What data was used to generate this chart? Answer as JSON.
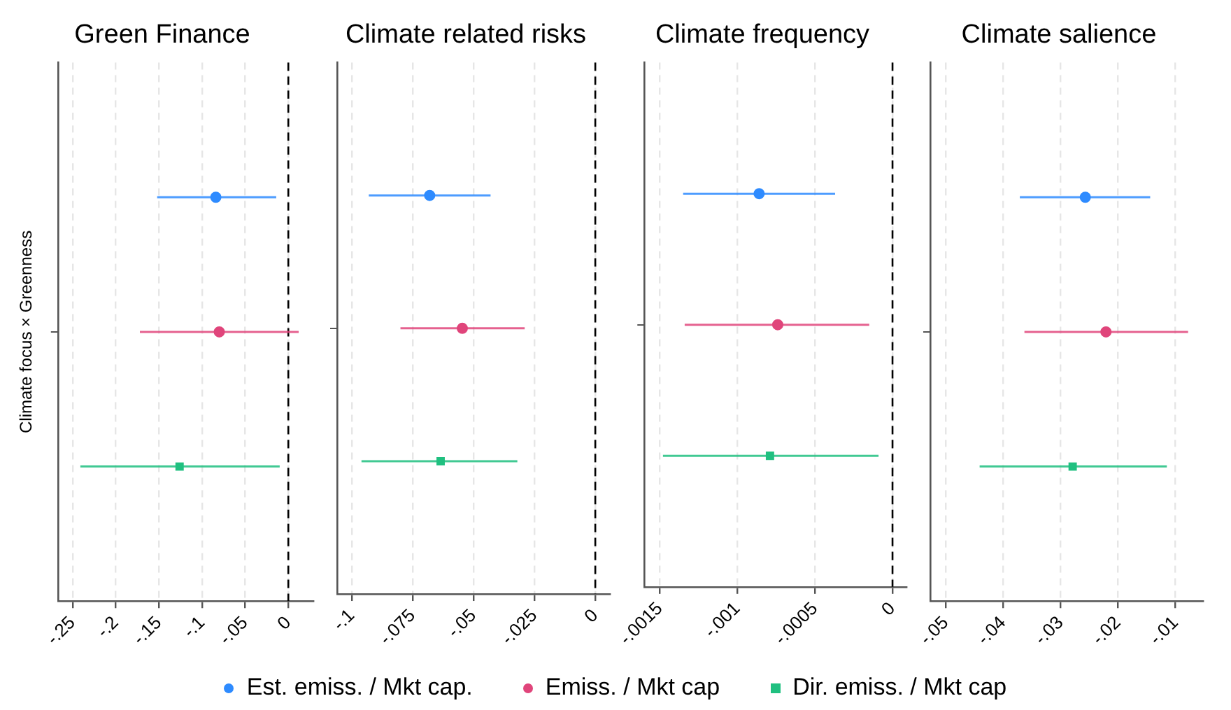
{
  "chart_data": [
    {
      "type": "scatter",
      "title": "Green Finance",
      "ylabel": "Climate focus × Greenness",
      "orientation": "horizontal",
      "categories": [
        null
      ],
      "grid": "x",
      "legend": "bottom",
      "xlim": [
        -0.267,
        0.029
      ],
      "xticks": [
        {
          "value": -0.25,
          "label": "-.25"
        },
        {
          "value": -0.2,
          "label": "-.2"
        },
        {
          "value": -0.15,
          "label": "-.15"
        },
        {
          "value": -0.1,
          "label": "-.1"
        },
        {
          "value": -0.05,
          "label": "-.05"
        },
        {
          "value": 0,
          "label": "0"
        }
      ],
      "ref_lines": [
        {
          "axis": "x",
          "value": 0,
          "color": "#000000",
          "line_style": "dashed"
        }
      ],
      "series": [
        {
          "name": "Est. emiss. / Mkt cap.",
          "color": "#2e8bff",
          "marker": "circle",
          "values": [
            -0.084
          ],
          "errors": [
            [
              -0.152,
              -0.014
            ]
          ]
        },
        {
          "name": "Emiss. / Mkt cap",
          "color": "#e0457b",
          "marker": "circle",
          "values": [
            -0.08
          ],
          "errors": [
            [
              -0.172,
              0.012
            ]
          ]
        },
        {
          "name": "Dir. emiss. / Mkt cap",
          "color": "#20c080",
          "marker": "square",
          "values": [
            -0.126
          ],
          "errors": [
            [
              -0.241,
              -0.01
            ]
          ]
        }
      ]
    },
    {
      "type": "scatter",
      "title": "Climate related risks",
      "orientation": "horizontal",
      "categories": [
        null
      ],
      "grid": "x",
      "xlim": [
        -0.106,
        0.006
      ],
      "xticks": [
        {
          "value": -0.1,
          "label": "-.1"
        },
        {
          "value": -0.075,
          "label": "-.075"
        },
        {
          "value": -0.05,
          "label": "-.05"
        },
        {
          "value": -0.025,
          "label": "-.025"
        },
        {
          "value": 0,
          "label": "0"
        }
      ],
      "ref_lines": [
        {
          "axis": "x",
          "value": 0,
          "color": "#000000",
          "line_style": "dashed"
        }
      ],
      "series": [
        {
          "color": "#2e8bff",
          "marker": "circle",
          "values": [
            -0.068
          ],
          "errors": [
            [
              -0.093,
              -0.043
            ]
          ]
        },
        {
          "color": "#e0457b",
          "marker": "circle",
          "values": [
            -0.0546
          ],
          "errors": [
            [
              -0.08,
              -0.029
            ]
          ]
        },
        {
          "color": "#20c080",
          "marker": "square",
          "values": [
            -0.0635
          ],
          "errors": [
            [
              -0.096,
              -0.032
            ]
          ]
        }
      ]
    },
    {
      "type": "scatter",
      "title": "Climate frequency",
      "orientation": "horizontal",
      "categories": [
        null
      ],
      "grid": "x",
      "xlim": [
        -0.0016,
        9e-05
      ],
      "xticks": [
        {
          "value": -0.0015,
          "label": "-.0015"
        },
        {
          "value": -0.001,
          "label": "-.001"
        },
        {
          "value": -0.0005,
          "label": "-.0005"
        },
        {
          "value": 0,
          "label": "0"
        }
      ],
      "ref_lines": [
        {
          "axis": "x",
          "value": 0,
          "color": "#000000",
          "line_style": "dashed"
        }
      ],
      "series": [
        {
          "color": "#2e8bff",
          "marker": "circle",
          "values": [
            -0.00086
          ],
          "errors": [
            [
              -0.00135,
              -0.00037
            ]
          ]
        },
        {
          "color": "#e0457b",
          "marker": "circle",
          "values": [
            -0.00074
          ],
          "errors": [
            [
              -0.00134,
              -0.00015
            ]
          ]
        },
        {
          "color": "#20c080",
          "marker": "square",
          "values": [
            -0.00079
          ],
          "errors": [
            [
              -0.00148,
              -9e-05
            ]
          ]
        }
      ]
    },
    {
      "type": "scatter",
      "title": "Climate salience",
      "orientation": "horizontal",
      "categories": [
        null
      ],
      "grid": "x",
      "xlim": [
        -0.0527,
        -0.0052
      ],
      "xticks": [
        {
          "value": -0.05,
          "label": "-.05"
        },
        {
          "value": -0.04,
          "label": "-.04"
        },
        {
          "value": -0.03,
          "label": "-.03"
        },
        {
          "value": -0.02,
          "label": "-.02"
        },
        {
          "value": -0.01,
          "label": "-.01"
        }
      ],
      "series": [
        {
          "color": "#2e8bff",
          "marker": "circle",
          "values": [
            -0.0257
          ],
          "errors": [
            [
              -0.0371,
              -0.0144
            ]
          ]
        },
        {
          "color": "#e0457b",
          "marker": "circle",
          "values": [
            -0.0221
          ],
          "errors": [
            [
              -0.0363,
              -0.0078
            ]
          ]
        },
        {
          "color": "#20c080",
          "marker": "square",
          "values": [
            -0.0279
          ],
          "errors": [
            [
              -0.0441,
              -0.0115
            ]
          ]
        }
      ]
    }
  ]
}
